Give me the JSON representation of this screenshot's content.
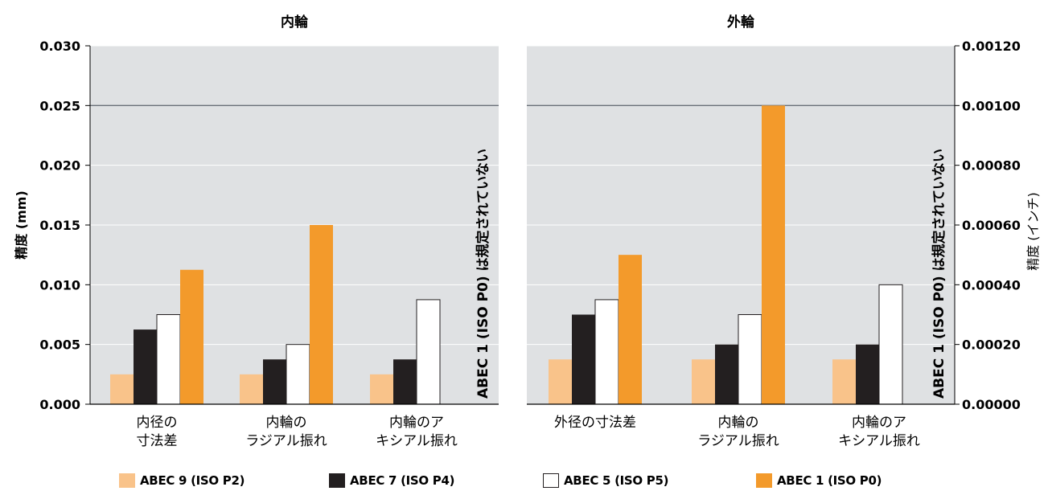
{
  "chart_data": {
    "type": "bar",
    "y_left": {
      "label": "精度 (mm)",
      "ticks": [
        "0.000",
        "0.005",
        "0.010",
        "0.015",
        "0.020",
        "0.025",
        "0.030"
      ],
      "range": [
        0,
        0.03
      ]
    },
    "y_right": {
      "label": "精度 (インチ)",
      "ticks": [
        "0.00000",
        "0.00020",
        "0.00040",
        "0.00060",
        "0.00080",
        "0.00100",
        "0.00120"
      ],
      "range": [
        0,
        0.0012
      ]
    },
    "grid": true,
    "reference_line": 0.025,
    "note": "ABEC 1 (ISO P0) は規定されていない",
    "series_colors": {
      "ABEC 9 (ISO P2)": "#f9c38a",
      "ABEC 7 (ISO P4)": "#231f20",
      "ABEC 5 (ISO P5)": "#ffffff",
      "ABEC 1 (ISO P0)": "#f39a2b"
    },
    "panel_color": "#dfe1e3",
    "panels": [
      {
        "title": "内輪",
        "categories": [
          "内径の\n寸法差",
          "内輪の\nラジアル振れ",
          "内輪のア\nキシアル振れ"
        ],
        "series": [
          {
            "name": "ABEC 9 (ISO P2)",
            "values": [
              0.0025,
              0.0025,
              0.0025
            ]
          },
          {
            "name": "ABEC 7 (ISO P4)",
            "values": [
              0.00625,
              0.00375,
              0.00375
            ]
          },
          {
            "name": "ABEC 5 (ISO P5)",
            "values": [
              0.0075,
              0.005,
              0.00875
            ]
          },
          {
            "name": "ABEC 1 (ISO P0)",
            "values": [
              0.01125,
              0.015,
              null
            ]
          }
        ]
      },
      {
        "title": "外輪",
        "categories": [
          "外径の寸法差",
          "内輪の\nラジアル振れ",
          "内輪のア\nキシアル振れ"
        ],
        "series": [
          {
            "name": "ABEC 9 (ISO P2)",
            "values": [
              0.00375,
              0.00375,
              0.00375
            ]
          },
          {
            "name": "ABEC 7 (ISO P4)",
            "values": [
              0.0075,
              0.005,
              0.005
            ]
          },
          {
            "name": "ABEC 5 (ISO P5)",
            "values": [
              0.00875,
              0.0075,
              0.01
            ]
          },
          {
            "name": "ABEC 1 (ISO P0)",
            "values": [
              0.0125,
              0.025,
              null
            ]
          }
        ]
      }
    ],
    "legend": [
      "ABEC 9 (ISO P2)",
      "ABEC 7 (ISO P4)",
      "ABEC 5 (ISO P5)",
      "ABEC 1 (ISO P0)"
    ]
  }
}
